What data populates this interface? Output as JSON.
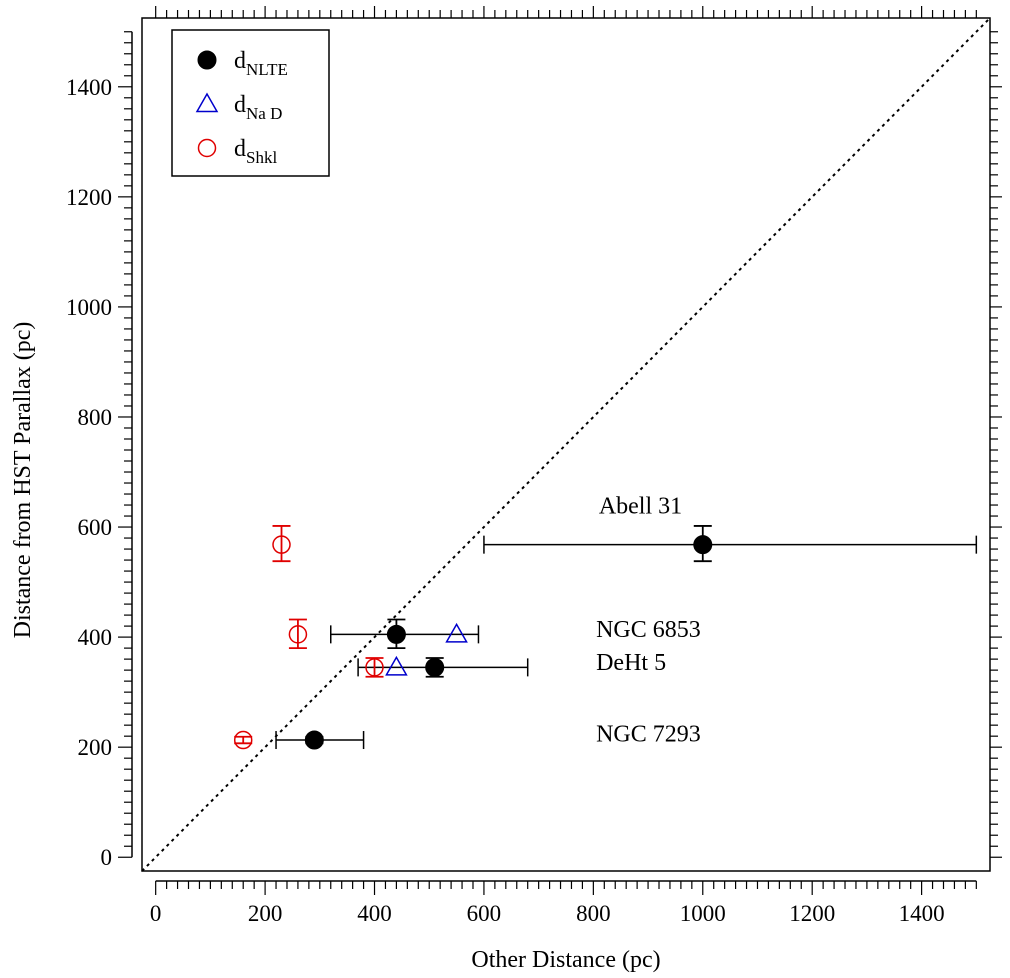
{
  "chart_data": {
    "type": "scatter",
    "xlabel": "Other Distance (pc)",
    "ylabel": "Distance from HST Parallax (pc)",
    "xlim": [
      -25,
      1525
    ],
    "ylim": [
      -25,
      1525
    ],
    "x_ticks": [
      0,
      200,
      400,
      600,
      800,
      1000,
      1200,
      1400
    ],
    "y_ticks": [
      0,
      200,
      400,
      600,
      800,
      1000,
      1200,
      1400
    ],
    "grid": false,
    "legend_position": "top-left",
    "reference_line": {
      "style": "dotted",
      "from": [
        -25,
        -25
      ],
      "to": [
        1525,
        1525
      ]
    },
    "series": [
      {
        "name": "d",
        "subscript": "NLTE",
        "marker": "filled-circle",
        "color": "#000000",
        "points": [
          {
            "x": 1000,
            "y": 568,
            "xerr": [
              600,
              1500
            ],
            "yerr": [
              538,
              602
            ]
          },
          {
            "x": 440,
            "y": 405,
            "xerr": [
              320,
              590
            ],
            "yerr": [
              380,
              432
            ]
          },
          {
            "x": 510,
            "y": 345,
            "xerr": [
              370,
              680
            ],
            "yerr": [
              328,
              362
            ]
          },
          {
            "x": 290,
            "y": 213,
            "xerr": [
              220,
              380
            ],
            "yerr": [
              207,
              219
            ]
          }
        ]
      },
      {
        "name": "d",
        "subscript": "Na D",
        "marker": "open-triangle",
        "color": "#0000cc",
        "points": [
          {
            "x": 550,
            "y": 405
          },
          {
            "x": 440,
            "y": 345
          }
        ]
      },
      {
        "name": "d",
        "subscript": "Shkl",
        "marker": "open-circle",
        "color": "#e00000",
        "points": [
          {
            "x": 230,
            "y": 568,
            "yerr": [
              538,
              602
            ]
          },
          {
            "x": 260,
            "y": 405,
            "yerr": [
              380,
              432
            ]
          },
          {
            "x": 400,
            "y": 345,
            "yerr": [
              328,
              362
            ]
          },
          {
            "x": 160,
            "y": 213,
            "yerr": [
              207,
              219
            ]
          }
        ]
      }
    ],
    "annotations": [
      {
        "text": "Abell 31",
        "x": 810,
        "y": 625
      },
      {
        "text": "NGC 6853",
        "x": 805,
        "y": 400
      },
      {
        "text": "DeHt 5",
        "x": 805,
        "y": 340
      },
      {
        "text": "NGC 7293",
        "x": 805,
        "y": 210
      }
    ]
  }
}
